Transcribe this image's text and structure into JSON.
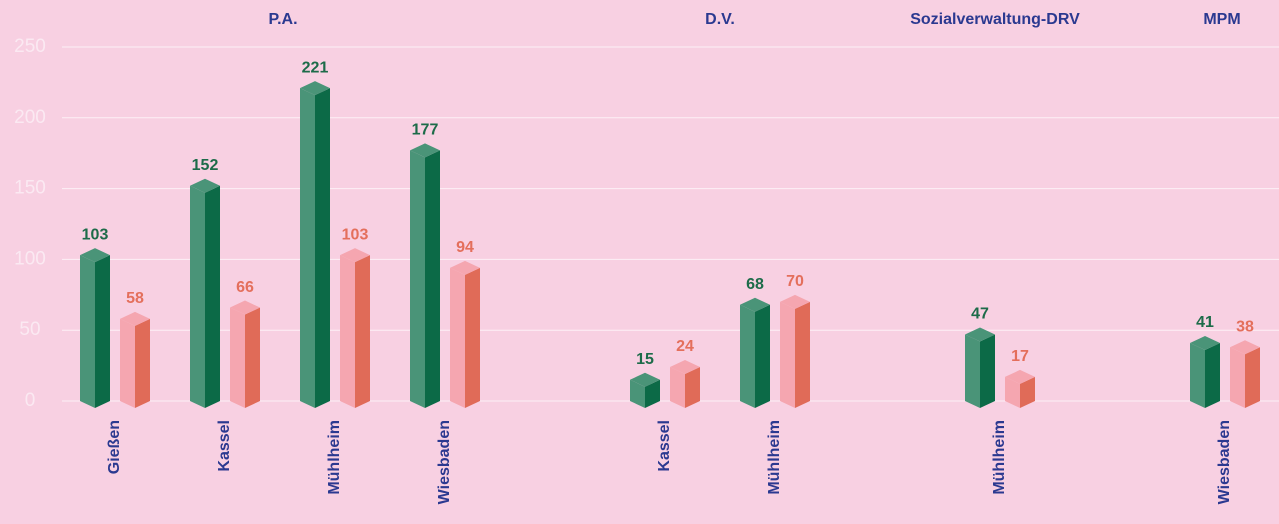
{
  "chart_data": {
    "type": "bar3d",
    "groups": [
      "P.A.",
      "D.V.",
      "Sozialverwaltung-DRV",
      "MPM"
    ],
    "categories": [
      "Gießen",
      "Kassel",
      "Mühlheim",
      "Wiesbaden",
      "Kassel",
      "Mühlheim",
      "Mühlheim",
      "Wiesbaden"
    ],
    "series": [
      {
        "color": "#4a9478",
        "side_color": "#0c6a47",
        "label_color": "#1d6b49",
        "values": [
          103,
          152,
          221,
          177,
          15,
          68,
          47,
          41
        ]
      },
      {
        "color": "#f5a6b0",
        "side_color": "#e06b58",
        "label_color": "#e46f5c",
        "values": [
          58,
          66,
          103,
          94,
          24,
          70,
          17,
          38
        ]
      }
    ],
    "ylim": [
      0,
      250
    ],
    "yticks": [
      0,
      50,
      100,
      150,
      200,
      250
    ],
    "grid": true
  }
}
